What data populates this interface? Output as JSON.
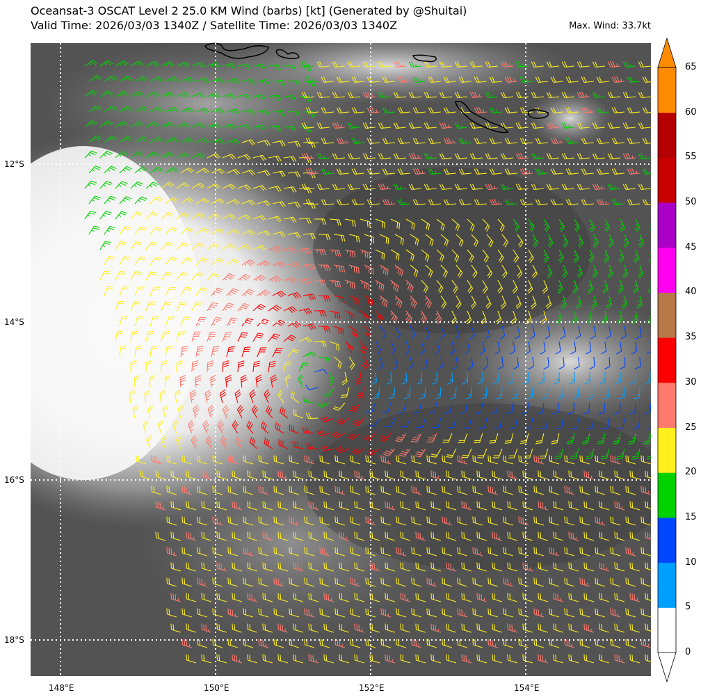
{
  "header": {
    "title_line1": "Oceansat-3 OSCAT Level 2 25.0 KM Wind (barbs) [kt] (Generated by @Shuitai)",
    "title_line2": "Valid Time: 2026/03/03 1340Z / Satellite Time: 2026/03/03 1340Z",
    "max_wind": "Max. Wind: 33.7kt"
  },
  "map": {
    "lat_labels": [
      "12°S",
      "14°S",
      "16°S",
      "18°S"
    ],
    "lon_labels": [
      "148°E",
      "150°E",
      "152°E",
      "154°E"
    ],
    "colors": {
      "gridline": "#ffffff",
      "coastline": "#000000"
    }
  },
  "colorbar": {
    "labels": [
      "0",
      "5",
      "10",
      "15",
      "20",
      "25",
      "30",
      "35",
      "40",
      "45",
      "50",
      "55",
      "60",
      "65"
    ],
    "bands": [
      {
        "from": 0,
        "to": 5,
        "color": "#ffffff"
      },
      {
        "from": 5,
        "to": 10,
        "color": "#00a0ff"
      },
      {
        "from": 10,
        "to": 15,
        "color": "#0046ff"
      },
      {
        "from": 15,
        "to": 20,
        "color": "#00d200"
      },
      {
        "from": 20,
        "to": 25,
        "color": "#fff01e"
      },
      {
        "from": 25,
        "to": 30,
        "color": "#ff7a6e"
      },
      {
        "from": 30,
        "to": 35,
        "color": "#ff0000"
      },
      {
        "from": 35,
        "to": 40,
        "color": "#b87848"
      },
      {
        "from": 40,
        "to": 45,
        "color": "#ff00f0"
      },
      {
        "from": 45,
        "to": 50,
        "color": "#aa00c8"
      },
      {
        "from": 50,
        "to": 55,
        "color": "#c80000"
      },
      {
        "from": 55,
        "to": 60,
        "color": "#b40000"
      },
      {
        "from": 60,
        "to": 65,
        "color": "#ff8c00"
      }
    ]
  }
}
